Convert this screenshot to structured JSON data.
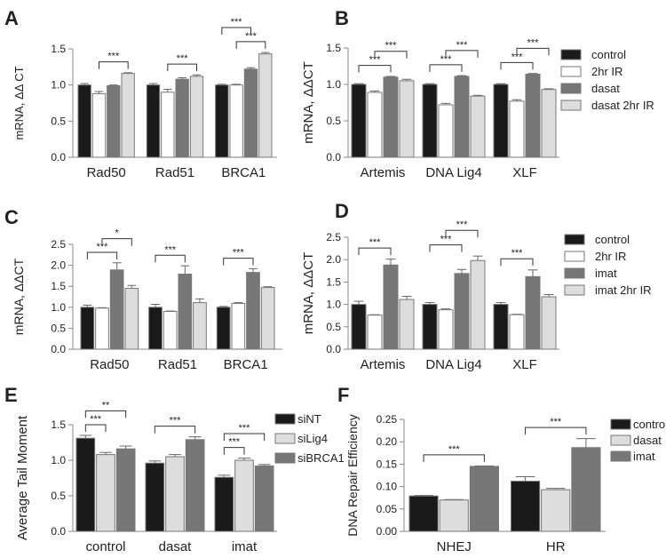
{
  "chart_data": [
    {
      "panel": "A",
      "type": "bar",
      "ylabel": "mRNA,  ΔΔ CT",
      "categories": [
        "Rad50",
        "Rad51",
        "BRCA1"
      ],
      "ylim": [
        0,
        1.5
      ],
      "yticks": [
        "0.0",
        "0.5",
        "1.0",
        "1.5"
      ],
      "legend": [],
      "series": [
        {
          "name": "control",
          "color": "#1a1a1a",
          "values": [
            1.0,
            1.0,
            1.0
          ],
          "errors": [
            0.02,
            0.02,
            0.01
          ]
        },
        {
          "name": "2hr IR",
          "color": "#ffffff",
          "values": [
            0.88,
            0.9,
            1.0
          ],
          "errors": [
            0.03,
            0.04,
            0.01
          ]
        },
        {
          "name": "dasat",
          "color": "#777777",
          "values": [
            0.99,
            1.08,
            1.22
          ],
          "errors": [
            0.01,
            0.02,
            0.02
          ]
        },
        {
          "name": "dasat 2hr IR",
          "color": "#dddddd",
          "values": [
            1.16,
            1.12,
            1.43
          ],
          "errors": [
            0.01,
            0.02,
            0.02
          ]
        }
      ],
      "significance": [
        {
          "group": 0,
          "from": 1,
          "to": 3,
          "label": "***"
        },
        {
          "group": 1,
          "from": 1,
          "to": 3,
          "label": "***"
        },
        {
          "group": 2,
          "from": 1,
          "to": 3,
          "label": "***"
        },
        {
          "group": 2,
          "from": 0,
          "to": 2,
          "label": "***"
        }
      ]
    },
    {
      "panel": "B",
      "type": "bar",
      "ylabel": "mRNA, ΔΔCT",
      "categories": [
        "Artemis",
        "DNA Lig4",
        "XLF"
      ],
      "ylim": [
        0,
        1.5
      ],
      "yticks": [
        "0.0",
        "0.5",
        "1.0",
        "1.5"
      ],
      "legend": [
        "control",
        "2hr IR",
        "dasat",
        "dasat 2hr IR"
      ],
      "series": [
        {
          "name": "control",
          "color": "#1a1a1a",
          "values": [
            1.0,
            1.0,
            1.0
          ],
          "errors": [
            0.01,
            0.01,
            0.01
          ]
        },
        {
          "name": "2hr IR",
          "color": "#ffffff",
          "values": [
            0.89,
            0.72,
            0.77
          ],
          "errors": [
            0.02,
            0.02,
            0.02
          ]
        },
        {
          "name": "dasat",
          "color": "#777777",
          "values": [
            1.1,
            1.11,
            1.14
          ],
          "errors": [
            0.01,
            0.01,
            0.01
          ]
        },
        {
          "name": "dasat 2hr IR",
          "color": "#dddddd",
          "values": [
            1.05,
            0.84,
            0.93
          ],
          "errors": [
            0.02,
            0.01,
            0.01
          ]
        }
      ],
      "significance": [
        {
          "group": 0,
          "from": 0,
          "to": 2,
          "label": "***"
        },
        {
          "group": 0,
          "from": 1,
          "to": 3,
          "label": "***"
        },
        {
          "group": 1,
          "from": 0,
          "to": 2,
          "label": "***"
        },
        {
          "group": 1,
          "from": 1,
          "to": 3,
          "label": "***"
        },
        {
          "group": 2,
          "from": 0,
          "to": 2,
          "label": "***"
        },
        {
          "group": 2,
          "from": 1,
          "to": 3,
          "label": "***"
        }
      ]
    },
    {
      "panel": "C",
      "type": "bar",
      "ylabel": "mRNA, ΔΔCT",
      "categories": [
        "Rad50",
        "Rad51",
        "BRCA1"
      ],
      "ylim": [
        0,
        2.5
      ],
      "yticks": [
        "0.0",
        "0.5",
        "1.0",
        "1.5",
        "2.0",
        "2.5"
      ],
      "legend": [],
      "series": [
        {
          "name": "control",
          "color": "#1a1a1a",
          "values": [
            1.0,
            1.0,
            1.0
          ],
          "errors": [
            0.05,
            0.07,
            0.02
          ]
        },
        {
          "name": "2hr IR",
          "color": "#ffffff",
          "values": [
            0.98,
            0.9,
            1.09
          ],
          "errors": [
            0.01,
            0.01,
            0.02
          ]
        },
        {
          "name": "imat",
          "color": "#777777",
          "values": [
            1.89,
            1.79,
            1.83
          ],
          "errors": [
            0.17,
            0.2,
            0.09
          ]
        },
        {
          "name": "imat 2hr IR",
          "color": "#dddddd",
          "values": [
            1.45,
            1.11,
            1.47
          ],
          "errors": [
            0.07,
            0.09,
            0.02
          ]
        }
      ],
      "significance": [
        {
          "group": 0,
          "from": 0,
          "to": 2,
          "label": "***"
        },
        {
          "group": 0,
          "from": 1,
          "to": 3,
          "label": "*"
        },
        {
          "group": 1,
          "from": 0,
          "to": 2,
          "label": "***"
        },
        {
          "group": 2,
          "from": 0,
          "to": 2,
          "label": "***"
        }
      ]
    },
    {
      "panel": "D",
      "type": "bar",
      "ylabel": "mRNA,  ΔΔCT",
      "categories": [
        "Artemis",
        "DNA Lig4",
        "XLF"
      ],
      "ylim": [
        0,
        2.5
      ],
      "yticks": [
        "0.0",
        "0.5",
        "1.0",
        "1.5",
        "2.0",
        "2.5"
      ],
      "legend": [
        "control",
        "2hr IR",
        "imat",
        "imat 2hr IR"
      ],
      "series": [
        {
          "name": "control",
          "color": "#1a1a1a",
          "values": [
            1.0,
            1.0,
            1.0
          ],
          "errors": [
            0.07,
            0.04,
            0.04
          ]
        },
        {
          "name": "2hr IR",
          "color": "#ffffff",
          "values": [
            0.76,
            0.88,
            0.77
          ],
          "errors": [
            0.01,
            0.02,
            0.01
          ]
        },
        {
          "name": "imat",
          "color": "#777777",
          "values": [
            1.88,
            1.69,
            1.62
          ],
          "errors": [
            0.13,
            0.09,
            0.15
          ]
        },
        {
          "name": "imat 2hr IR",
          "color": "#dddddd",
          "values": [
            1.11,
            1.98,
            1.17
          ],
          "errors": [
            0.07,
            0.1,
            0.05
          ]
        }
      ],
      "significance": [
        {
          "group": 0,
          "from": 0,
          "to": 2,
          "label": "***"
        },
        {
          "group": 1,
          "from": 0,
          "to": 2,
          "label": "***"
        },
        {
          "group": 1,
          "from": 1,
          "to": 3,
          "label": "***"
        },
        {
          "group": 2,
          "from": 0,
          "to": 2,
          "label": "***"
        }
      ]
    },
    {
      "panel": "E",
      "type": "bar",
      "ylabel": "Average Tail Moment",
      "categories": [
        "control",
        "dasat",
        "imat"
      ],
      "ylim": [
        0,
        1.5
      ],
      "yticks": [
        "0.0",
        "0.5",
        "1.0",
        "1.5"
      ],
      "legend": [
        "siNT",
        "siLig4",
        "siBRCA1"
      ],
      "series": [
        {
          "name": "siNT",
          "color": "#1a1a1a",
          "values": [
            1.31,
            0.96,
            0.76
          ],
          "errors": [
            0.04,
            0.03,
            0.03
          ]
        },
        {
          "name": "siLig4",
          "color": "#dddddd",
          "values": [
            1.08,
            1.05,
            1.0
          ],
          "errors": [
            0.03,
            0.03,
            0.03
          ]
        },
        {
          "name": "siBRCA1",
          "color": "#777777",
          "values": [
            1.16,
            1.29,
            0.92
          ],
          "errors": [
            0.04,
            0.04,
            0.02
          ]
        }
      ],
      "significance": [
        {
          "group": 0,
          "from": 0,
          "to": 1,
          "label": "***"
        },
        {
          "group": 0,
          "from": 0,
          "to": 2,
          "label": "**"
        },
        {
          "group": 1,
          "from": 0,
          "to": 2,
          "label": "***"
        },
        {
          "group": 2,
          "from": 0,
          "to": 1,
          "label": "***"
        },
        {
          "group": 2,
          "from": 0,
          "to": 2,
          "label": "***"
        }
      ]
    },
    {
      "panel": "F",
      "type": "bar",
      "ylabel": "DNA Repair Efficiency",
      "categories": [
        "NHEJ",
        "HR"
      ],
      "ylim": [
        0,
        0.25
      ],
      "yticks": [
        "0.00",
        "0.05",
        "0.10",
        "0.15",
        "0.20",
        "0.25"
      ],
      "legend": [
        "control",
        "dasat",
        "imat"
      ],
      "series": [
        {
          "name": "control",
          "color": "#1a1a1a",
          "values": [
            0.079,
            0.112
          ],
          "errors": [
            0.001,
            0.01
          ]
        },
        {
          "name": "dasat",
          "color": "#dddddd",
          "values": [
            0.07,
            0.093
          ],
          "errors": [
            0.001,
            0.003
          ]
        },
        {
          "name": "imat",
          "color": "#777777",
          "values": [
            0.145,
            0.187
          ],
          "errors": [
            0.001,
            0.02
          ]
        }
      ],
      "significance": [
        {
          "group": 0,
          "from": 0,
          "to": 2,
          "label": "***"
        },
        {
          "group": 1,
          "from": 0,
          "to": 2,
          "label": "***"
        }
      ]
    }
  ]
}
